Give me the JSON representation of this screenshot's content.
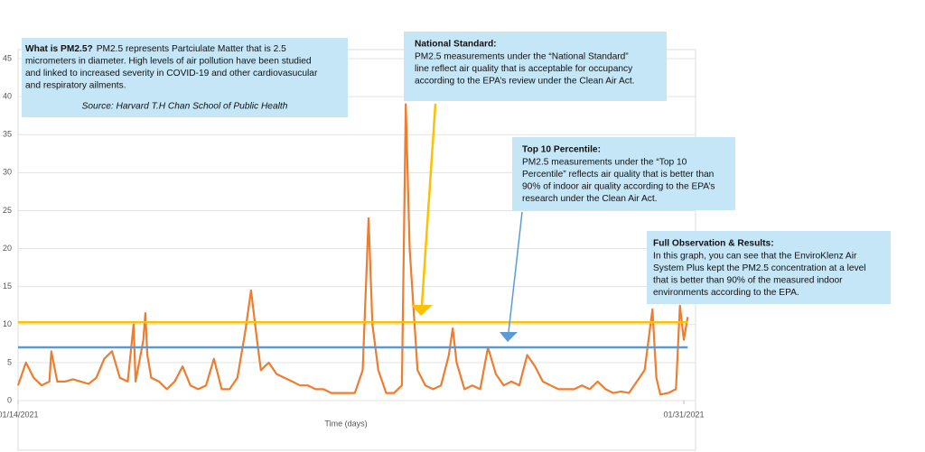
{
  "chart_data": {
    "type": "line",
    "x_label": "Time (days)",
    "xlim": [
      0,
      17.3
    ],
    "xticks": [
      {
        "value": 0,
        "label": "01/14/2021"
      },
      {
        "value": 17,
        "label": "01/31/2021"
      }
    ],
    "ylim": [
      0,
      45
    ],
    "yticks": [
      0,
      5,
      10,
      15,
      20,
      25,
      30,
      35,
      40,
      45
    ],
    "grid": true,
    "x": [
      0,
      0.2,
      0.4,
      0.6,
      0.8,
      0.85,
      1.0,
      1.2,
      1.4,
      1.6,
      1.8,
      2.0,
      2.2,
      2.4,
      2.6,
      2.8,
      2.95,
      3.0,
      3.2,
      3.25,
      3.3,
      3.4,
      3.6,
      3.8,
      4.0,
      4.2,
      4.4,
      4.6,
      4.8,
      5.0,
      5.2,
      5.4,
      5.6,
      5.8,
      5.95,
      6.1,
      6.2,
      6.4,
      6.6,
      6.8,
      7.0,
      7.2,
      7.4,
      7.6,
      7.8,
      8.0,
      8.2,
      8.4,
      8.6,
      8.8,
      8.95,
      9.05,
      9.2,
      9.4,
      9.6,
      9.8,
      9.9,
      10.0,
      10.2,
      10.4,
      10.6,
      10.8,
      11.0,
      11.1,
      11.2,
      11.4,
      11.6,
      11.8,
      12.0,
      12.2,
      12.4,
      12.6,
      12.8,
      13.0,
      13.2,
      13.4,
      13.6,
      13.8,
      14.0,
      14.2,
      14.4,
      14.6,
      14.8,
      15.0,
      15.2,
      15.4,
      15.6,
      15.8,
      16.0,
      16.2,
      16.3,
      16.4,
      16.6,
      16.8,
      16.9,
      17.0,
      17.1
    ],
    "series": [
      {
        "color": "#ed7d31",
        "values": [
          2,
          5,
          3,
          2,
          2.5,
          6.5,
          2.5,
          2.5,
          2.8,
          2.5,
          2.2,
          3,
          5.5,
          6.5,
          3,
          2.5,
          10,
          2.5,
          8,
          11.5,
          6,
          3,
          2.5,
          1.5,
          2.5,
          4.5,
          2,
          1.5,
          2,
          5.5,
          1.5,
          1.5,
          3,
          9,
          14.5,
          8,
          4,
          5,
          3.5,
          3,
          2.5,
          2,
          2,
          1.5,
          1.5,
          1,
          1,
          1,
          1,
          4,
          24,
          10,
          4,
          1,
          1,
          2,
          39,
          20,
          4,
          2,
          1.5,
          2,
          6,
          9.5,
          5,
          1.5,
          2,
          1.5,
          7,
          3.5,
          2,
          2.5,
          2,
          6,
          4.5,
          2.5,
          2,
          1.5,
          1.5,
          1.5,
          2,
          1.5,
          2.5,
          1.5,
          1,
          1.2,
          1,
          2.5,
          4,
          12,
          3,
          0.8,
          1,
          1.5,
          12.5,
          8,
          11
        ]
      }
    ],
    "reference_lines": [
      {
        "value": 10.3,
        "color": "#ffc000"
      },
      {
        "value": 7,
        "color": "#5b9bd5"
      }
    ],
    "annotations": [
      {
        "title": "What is PM2.5?",
        "lines": [
          "PM2.5 represents Partciulate Matter that is 2.5",
          "micrometers in diameter. High levels of air pollution have been studied",
          "and linked to increased severity in COVID-19 and other cardiovasucular",
          "and respiratory ailments."
        ],
        "source": "Source: Harvard T.H Chan School of Public Health"
      },
      {
        "title": "National Standard:",
        "lines": [
          "PM2.5 measurements under the “National Standard”",
          "line reflect air quality that is acceptable for occupancy",
          "according to the EPA’s review under the Clean Air Act."
        ]
      },
      {
        "title": "Top 10 Percentile:",
        "lines": [
          "PM2.5 measurements under the “Top 10",
          "Percentile” reflects air quality that is better than",
          "90% of indoor air quality according to the EPA’s",
          "research under the Clean Air Act."
        ]
      },
      {
        "title": "Full Observation & Results:",
        "lines": [
          "In this graph, you can see that the EnviroKlenz Air",
          "System Plus kept the PM2.5 concentration at a level",
          "that is better than 90% of the measured indoor",
          "environments according to the EPA."
        ]
      }
    ]
  }
}
